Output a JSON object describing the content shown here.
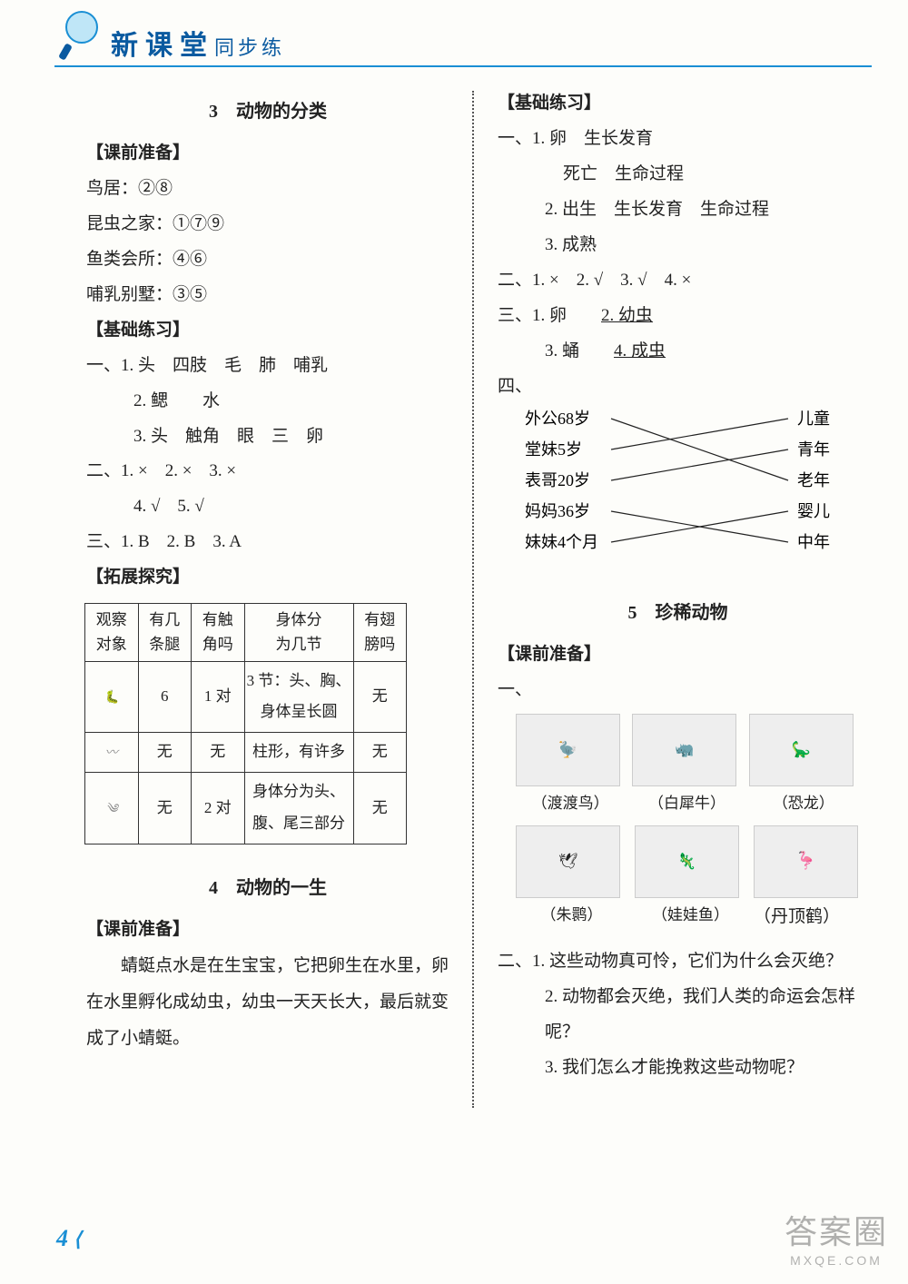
{
  "header": {
    "title_main": "新课堂",
    "title_sub": "同步练"
  },
  "left": {
    "section3_title": "3　动物的分类",
    "keqian": "【课前准备】",
    "l1": "鸟居：②⑧",
    "l2": "昆虫之家：①⑦⑨",
    "l3": "鱼类会所：④⑥",
    "l4": "哺乳别墅：③⑤",
    "jichu": "【基础练习】",
    "yi1": "一、1. 头　四肢　毛　肺　哺乳",
    "yi2": "2. 鳃　　水",
    "yi3": "3. 头　触角　眼　三　卵",
    "er1": "二、1. ×　2. ×　3. ×",
    "er2": "4. √　5. √",
    "san": "三、1. B　2. B　3. A",
    "tuozhan": "【拓展探究】",
    "table": {
      "headers": [
        "观察\n对象",
        "有几\n条腿",
        "有触\n角吗",
        "身体分\n为几节",
        "有翅\n膀吗"
      ],
      "rows": [
        {
          "obj": "~",
          "legs": "6",
          "ant": "1 对",
          "body": "3 节：头、胸、\n身体呈长圆",
          "wing": "无"
        },
        {
          "obj": "～",
          "legs": "无",
          "ant": "无",
          "body": "柱形，有许多",
          "wing": "无"
        },
        {
          "obj": "·",
          "legs": "无",
          "ant": "2 对",
          "body": "身体分为头、\n腹、尾三部分",
          "wing": "无"
        }
      ]
    },
    "section4_title": "4　动物的一生",
    "keqian4": "【课前准备】",
    "para4": "蜻蜓点水是在生宝宝，它把卵生在水里，卵在水里孵化成幼虫，幼虫一天天长大，最后就变成了小蜻蜓。"
  },
  "right": {
    "jichu": "【基础练习】",
    "yi1": "一、1. 卵　生长发育",
    "yi1b": "死亡　生命过程",
    "yi2": "2. 出生　生长发育　生命过程",
    "yi3": "3. 成熟",
    "er": "二、1. ×　2. √　3. √　4. ×",
    "san1": "三、1. 卵",
    "san2": "2. 幼虫",
    "san3": "3. 蛹",
    "san4": "4. 成虫",
    "si": "四、",
    "match_left": [
      "外公68岁",
      "堂妹5岁",
      "表哥20岁",
      "妈妈36岁",
      "妹妹4个月"
    ],
    "match_right": [
      "儿童",
      "青年",
      "老年",
      "婴儿",
      "中年"
    ],
    "match_lines": [
      [
        0,
        2
      ],
      [
        1,
        0
      ],
      [
        2,
        1
      ],
      [
        3,
        4
      ],
      [
        4,
        3
      ]
    ],
    "section5_title": "5　珍稀动物",
    "keqian5": "【课前准备】",
    "yi5": "一、",
    "animals1": [
      "（渡渡鸟）",
      "（白犀牛）",
      "（恐龙）"
    ],
    "animals2": [
      "（朱鹮）",
      "（娃娃鱼）",
      "（丹顶鹤）"
    ],
    "q1": "二、1. 这些动物真可怜，它们为什么会灭绝？",
    "q2": "2. 动物都会灭绝，我们人类的命运会怎样呢？",
    "q3": "3. 我们怎么才能挽救这些动物呢？"
  },
  "pagenum": "4",
  "watermark": {
    "top": "答案圈",
    "bot": "MXQE.COM"
  },
  "colors": {
    "accent": "#1a8fd4",
    "dark": "#0a5aa0"
  }
}
